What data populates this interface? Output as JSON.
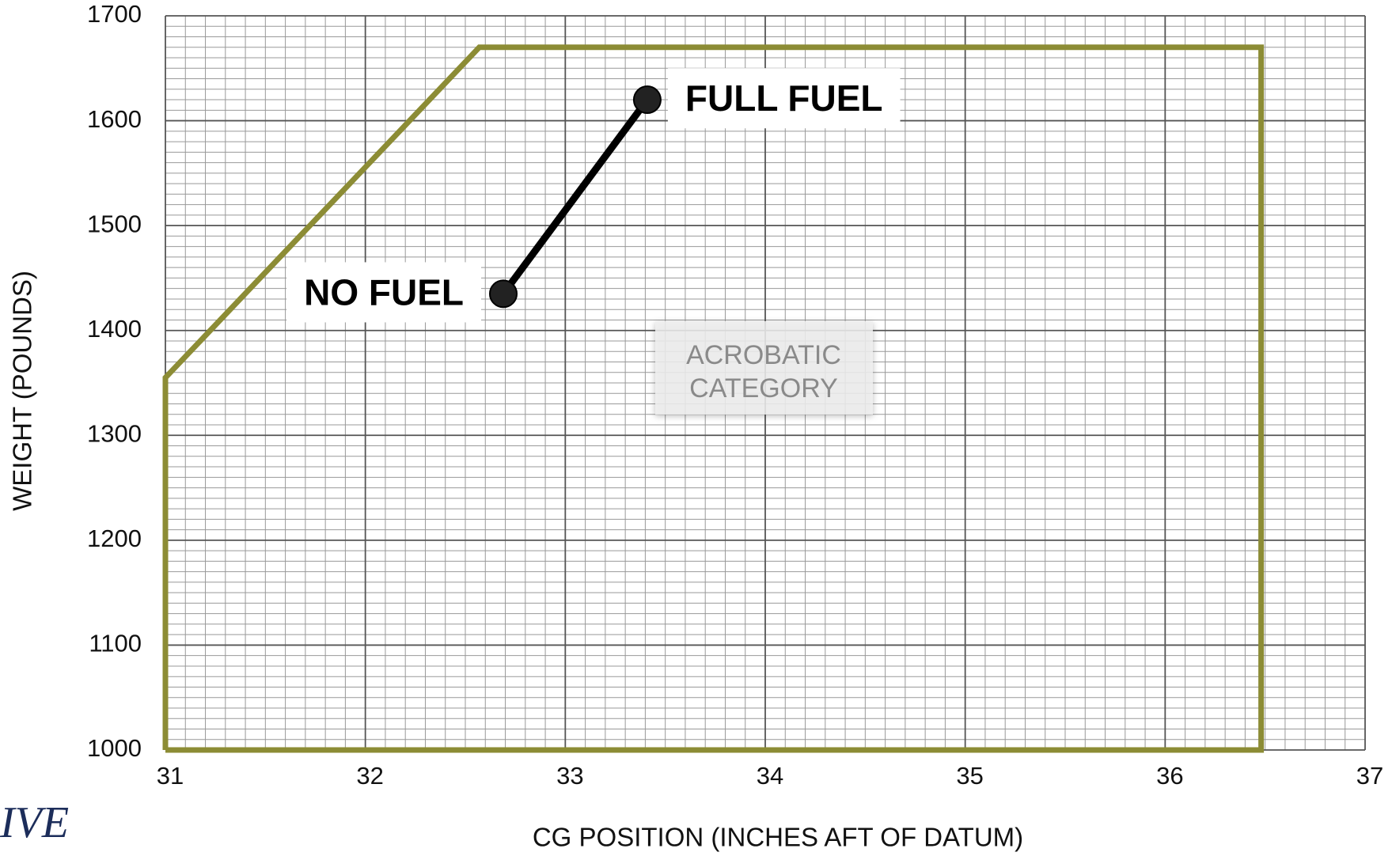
{
  "chart_data": {
    "type": "line",
    "xlabel": "CG POSITION (INCHES AFT OF DATUM)",
    "ylabel": "WEIGHT (POUNDS)",
    "xlim": [
      31,
      37
    ],
    "xticks": [
      31,
      32,
      33,
      34,
      35,
      36,
      37
    ],
    "ylim": [
      1000,
      1700
    ],
    "yticks": [
      1000,
      1100,
      1200,
      1300,
      1400,
      1500,
      1600,
      1700
    ],
    "grid": true,
    "series": [
      {
        "color": "#8c8c35",
        "x": [
          31,
          31,
          32.57,
          36.48,
          36.48,
          31
        ],
        "values": [
          1000,
          1355,
          1670,
          1670,
          1000,
          1000
        ]
      },
      {
        "color": "#000000",
        "x": [
          32.69,
          33.41
        ],
        "values": [
          1435,
          1620
        ]
      }
    ],
    "annotations": [
      "NO FUEL",
      "FULL FUEL"
    ],
    "region_label": [
      "ACROBATIC",
      "CATEGORY"
    ],
    "watermark": "IVE"
  }
}
